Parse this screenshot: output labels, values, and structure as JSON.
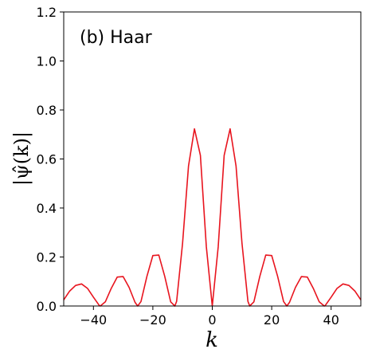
{
  "chart_data": {
    "type": "line",
    "xlabel": "k",
    "ylabel": "|ψ̂(k)|",
    "annotation": "(b) Haar",
    "xlim": [
      -50,
      50
    ],
    "ylim": [
      0,
      1.2
    ],
    "xticks": [
      -40,
      -20,
      0,
      20,
      40
    ],
    "xtick_labels": [
      "−40",
      "−20",
      "0",
      "20",
      "40"
    ],
    "yticks": [
      0.0,
      0.2,
      0.4,
      0.6,
      0.8,
      1.0,
      1.2
    ],
    "ytick_labels": [
      "0.0",
      "0.2",
      "0.4",
      "0.6",
      "0.8",
      "1.0",
      "1.2"
    ],
    "grid": false,
    "series": [
      {
        "color": "#e8141e",
        "x": [
          -50,
          -48,
          -46,
          -44,
          -42,
          -40,
          -38,
          -37.7,
          -36,
          -34,
          -32,
          -30,
          -28,
          -26,
          -25.1,
          -24,
          -22,
          -20,
          -18,
          -16,
          -14,
          -12.6,
          -12,
          -10,
          -8,
          -6,
          -4,
          -2,
          0,
          2,
          4,
          6,
          8,
          10,
          12,
          12.6,
          14,
          16,
          18,
          20,
          22,
          24,
          25.1,
          26,
          28,
          30,
          32,
          34,
          36,
          37.7,
          38,
          40,
          42,
          44,
          46,
          48,
          50
        ],
        "y": [
          0.025,
          0.061,
          0.084,
          0.09,
          0.072,
          0.036,
          0.0017,
          0,
          0.017,
          0.072,
          0.118,
          0.12,
          0.076,
          0.015,
          0,
          0.018,
          0.121,
          0.206,
          0.208,
          0.121,
          0.017,
          0,
          0.019,
          0.256,
          0.571,
          0.723,
          0.615,
          0.242,
          0,
          0.242,
          0.615,
          0.723,
          0.571,
          0.256,
          0.019,
          0,
          0.017,
          0.121,
          0.208,
          0.206,
          0.121,
          0.018,
          0,
          0.015,
          0.076,
          0.12,
          0.118,
          0.072,
          0.017,
          0,
          0.0017,
          0.036,
          0.072,
          0.09,
          0.084,
          0.061,
          0.025
        ]
      }
    ]
  }
}
